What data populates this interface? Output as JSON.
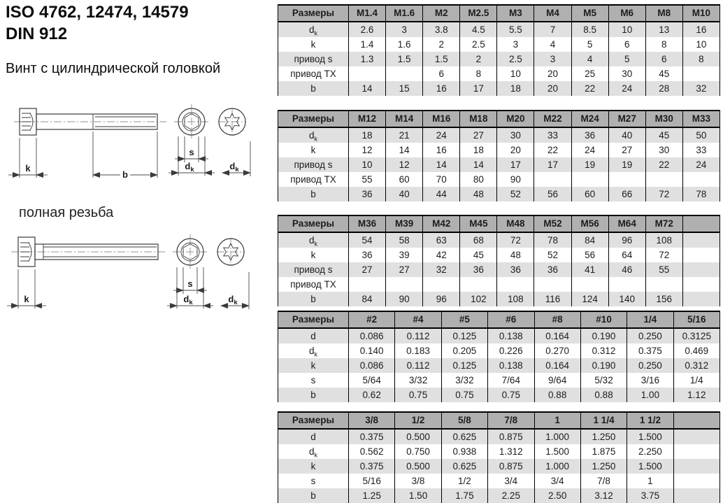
{
  "header": {
    "title_line1": "ISO 4762, 12474, 14579",
    "title_line2": "DIN 912",
    "subtitle": "Винт с цилиндрической головкой",
    "full_thread_label": "полная резьба"
  },
  "drawing": {
    "dim_labels": {
      "k": "k",
      "b": "b",
      "s": "s",
      "d": "d",
      "d_sub": "k"
    }
  },
  "colors": {
    "table_header_bg": "#b0b0b0",
    "row_stripe_bg": "#e0e0e0",
    "border": "#000000",
    "text": "#1c1c1c"
  },
  "tables": [
    {
      "corner_label": "Размеры",
      "columns": [
        "M1.4",
        "M1.6",
        "M2",
        "M2.5",
        "M3",
        "M4",
        "M5",
        "M6",
        "M8",
        "M10"
      ],
      "rows": [
        {
          "label": "d",
          "sub": "k",
          "values": [
            "2.6",
            "3",
            "3.8",
            "4.5",
            "5.5",
            "7",
            "8.5",
            "10",
            "13",
            "16"
          ]
        },
        {
          "label": "k",
          "sub": "",
          "values": [
            "1.4",
            "1.6",
            "2",
            "2.5",
            "3",
            "4",
            "5",
            "6",
            "8",
            "10"
          ]
        },
        {
          "label": "привод s",
          "sub": "",
          "values": [
            "1.3",
            "1.5",
            "1.5",
            "2",
            "2.5",
            "3",
            "4",
            "5",
            "6",
            "8"
          ]
        },
        {
          "label": "привод TX",
          "sub": "",
          "values": [
            "",
            "",
            "6",
            "8",
            "10",
            "20",
            "25",
            "30",
            "45",
            ""
          ]
        },
        {
          "label": "b",
          "sub": "",
          "values": [
            "14",
            "15",
            "16",
            "17",
            "18",
            "20",
            "22",
            "24",
            "28",
            "32"
          ]
        }
      ]
    },
    {
      "corner_label": "Размеры",
      "columns": [
        "M12",
        "M14",
        "M16",
        "M18",
        "M20",
        "M22",
        "M24",
        "M27",
        "M30",
        "M33"
      ],
      "rows": [
        {
          "label": "d",
          "sub": "k",
          "values": [
            "18",
            "21",
            "24",
            "27",
            "30",
            "33",
            "36",
            "40",
            "45",
            "50"
          ]
        },
        {
          "label": "k",
          "sub": "",
          "values": [
            "12",
            "14",
            "16",
            "18",
            "20",
            "22",
            "24",
            "27",
            "30",
            "33"
          ]
        },
        {
          "label": "привод s",
          "sub": "",
          "values": [
            "10",
            "12",
            "14",
            "14",
            "17",
            "17",
            "19",
            "19",
            "22",
            "24"
          ]
        },
        {
          "label": "привод TX",
          "sub": "",
          "values": [
            "55",
            "60",
            "70",
            "80",
            "90",
            "",
            "",
            "",
            "",
            ""
          ]
        },
        {
          "label": "b",
          "sub": "",
          "values": [
            "36",
            "40",
            "44",
            "48",
            "52",
            "56",
            "60",
            "66",
            "72",
            "78"
          ]
        }
      ]
    },
    {
      "corner_label": "Размеры",
      "columns": [
        "M36",
        "M39",
        "M42",
        "M45",
        "M48",
        "M52",
        "M56",
        "M64",
        "M72",
        ""
      ],
      "rows": [
        {
          "label": "d",
          "sub": "k",
          "values": [
            "54",
            "58",
            "63",
            "68",
            "72",
            "78",
            "84",
            "96",
            "108",
            ""
          ]
        },
        {
          "label": "k",
          "sub": "",
          "values": [
            "36",
            "39",
            "42",
            "45",
            "48",
            "52",
            "56",
            "64",
            "72",
            ""
          ]
        },
        {
          "label": "привод s",
          "sub": "",
          "values": [
            "27",
            "27",
            "32",
            "36",
            "36",
            "36",
            "41",
            "46",
            "55",
            ""
          ]
        },
        {
          "label": "привод TX",
          "sub": "",
          "values": [
            "",
            "",
            "",
            "",
            "",
            "",
            "",
            "",
            "",
            ""
          ]
        },
        {
          "label": "b",
          "sub": "",
          "values": [
            "84",
            "90",
            "96",
            "102",
            "108",
            "116",
            "124",
            "140",
            "156",
            ""
          ]
        }
      ]
    },
    {
      "corner_label": "Размеры",
      "columns": [
        "#2",
        "#4",
        "#5",
        "#6",
        "#8",
        "#10",
        "1/4",
        "5/16"
      ],
      "rows": [
        {
          "label": "d",
          "sub": "",
          "values": [
            "0.086",
            "0.112",
            "0.125",
            "0.138",
            "0.164",
            "0.190",
            "0.250",
            "0.3125"
          ]
        },
        {
          "label": "d",
          "sub": "k",
          "values": [
            "0.140",
            "0.183",
            "0.205",
            "0.226",
            "0.270",
            "0.312",
            "0.375",
            "0.469"
          ]
        },
        {
          "label": "k",
          "sub": "",
          "values": [
            "0.086",
            "0.112",
            "0.125",
            "0.138",
            "0.164",
            "0.190",
            "0.250",
            "0.312"
          ]
        },
        {
          "label": "s",
          "sub": "",
          "values": [
            "5/64",
            "3/32",
            "3/32",
            "7/64",
            "9/64",
            "5/32",
            "3/16",
            "1/4"
          ]
        },
        {
          "label": "b",
          "sub": "",
          "values": [
            "0.62",
            "0.75",
            "0.75",
            "0.75",
            "0.88",
            "0.88",
            "1.00",
            "1.12"
          ]
        }
      ]
    },
    {
      "corner_label": "Размеры",
      "columns": [
        "3/8",
        "1/2",
        "5/8",
        "7/8",
        "1",
        "1 1/4",
        "1 1/2",
        ""
      ],
      "rows": [
        {
          "label": "d",
          "sub": "",
          "values": [
            "0.375",
            "0.500",
            "0.625",
            "0.875",
            "1.000",
            "1.250",
            "1.500",
            ""
          ]
        },
        {
          "label": "d",
          "sub": "k",
          "values": [
            "0.562",
            "0.750",
            "0.938",
            "1.312",
            "1.500",
            "1.875",
            "2.250",
            ""
          ]
        },
        {
          "label": "k",
          "sub": "",
          "values": [
            "0.375",
            "0.500",
            "0.625",
            "0.875",
            "1.000",
            "1.250",
            "1.500",
            ""
          ]
        },
        {
          "label": "s",
          "sub": "",
          "values": [
            "5/16",
            "3/8",
            "1/2",
            "3/4",
            "3/4",
            "7/8",
            "1",
            ""
          ]
        },
        {
          "label": "b",
          "sub": "",
          "values": [
            "1.25",
            "1.50",
            "1.75",
            "2.25",
            "2.50",
            "3.12",
            "3.75",
            ""
          ]
        }
      ]
    }
  ]
}
